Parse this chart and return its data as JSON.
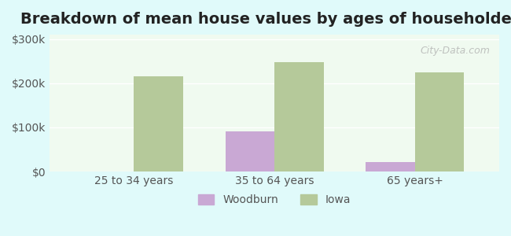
{
  "title": "Breakdown of mean house values by ages of householders",
  "categories": [
    "25 to 34 years",
    "35 to 64 years",
    "65 years+"
  ],
  "woodburn_values": [
    0,
    90000,
    22000
  ],
  "iowa_values": [
    215000,
    248000,
    225000
  ],
  "woodburn_color": "#c9a8d4",
  "iowa_color": "#b5c99a",
  "ylim": [
    0,
    310000
  ],
  "yticks": [
    0,
    100000,
    200000,
    300000
  ],
  "ytick_labels": [
    "$0",
    "$100k",
    "$200k",
    "$300k"
  ],
  "background_color": "#e0fafa",
  "plot_bg_color": "#f0faf0",
  "legend_labels": [
    "Woodburn",
    "Iowa"
  ],
  "title_fontsize": 14,
  "bar_width": 0.35,
  "watermark": "City-Data.com"
}
